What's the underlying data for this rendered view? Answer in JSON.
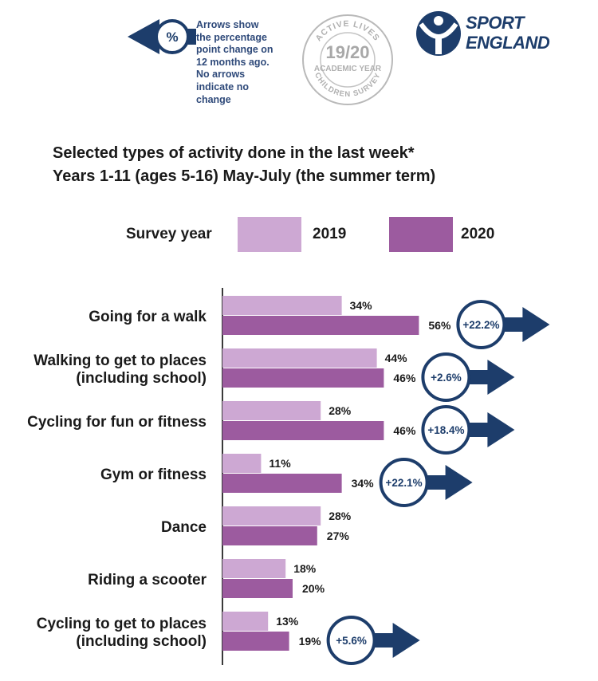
{
  "legend_note": {
    "icon": "percent-circle-arrow-icon",
    "symbol": "%",
    "text": "Arrows show\nthe percentage\npoint change on\n12 months ago.\nNo arrows\nindicate no\nchange"
  },
  "stamp": {
    "top_text": "ACTIVE LIVES",
    "year": "19/20",
    "middle_text": "ACADEMIC YEAR",
    "bottom_text": "CHILDREN SURVEY"
  },
  "logo": {
    "icon": "sport-england-logo-icon",
    "line1": "SPORT",
    "line2": "ENGLAND"
  },
  "colors": {
    "series_2019": "#cda8d3",
    "series_2020": "#9c5b9f",
    "arrow_navy": "#1d3d6b",
    "legend_text": "#2f4a7a",
    "axis": "#3a3a3a"
  },
  "chart_data": {
    "type": "bar",
    "orientation": "horizontal",
    "title": "Selected types of activity done in the last week*",
    "subtitle": "Years 1-11 (ages 5-16) May-July (the summer term)",
    "legend_title": "Survey year",
    "legend_placement": "top",
    "categories": [
      [
        "Going for a walk"
      ],
      [
        "Walking to get to places",
        "(including school)"
      ],
      [
        "Cycling for fun or fitness"
      ],
      [
        "Gym or fitness"
      ],
      [
        "Dance"
      ],
      [
        "Riding a scooter"
      ],
      [
        "Cycling to get to places",
        "(including school)"
      ]
    ],
    "series": [
      {
        "name": "2019",
        "values": [
          34,
          44,
          28,
          11,
          28,
          18,
          13
        ],
        "labels": [
          "34%",
          "44%",
          "28%",
          "11%",
          "28%",
          "18%",
          "13%"
        ]
      },
      {
        "name": "2020",
        "values": [
          56,
          46,
          46,
          34,
          27,
          20,
          19
        ],
        "labels": [
          "56%",
          "46%",
          "46%",
          "34%",
          "27%",
          "20%",
          "19%"
        ]
      }
    ],
    "changes": [
      "+22.2%",
      "+2.6%",
      "+18.4%",
      "+22.1%",
      "",
      "",
      "+5.6%"
    ],
    "xlim": [
      0,
      100
    ],
    "grid": false
  }
}
